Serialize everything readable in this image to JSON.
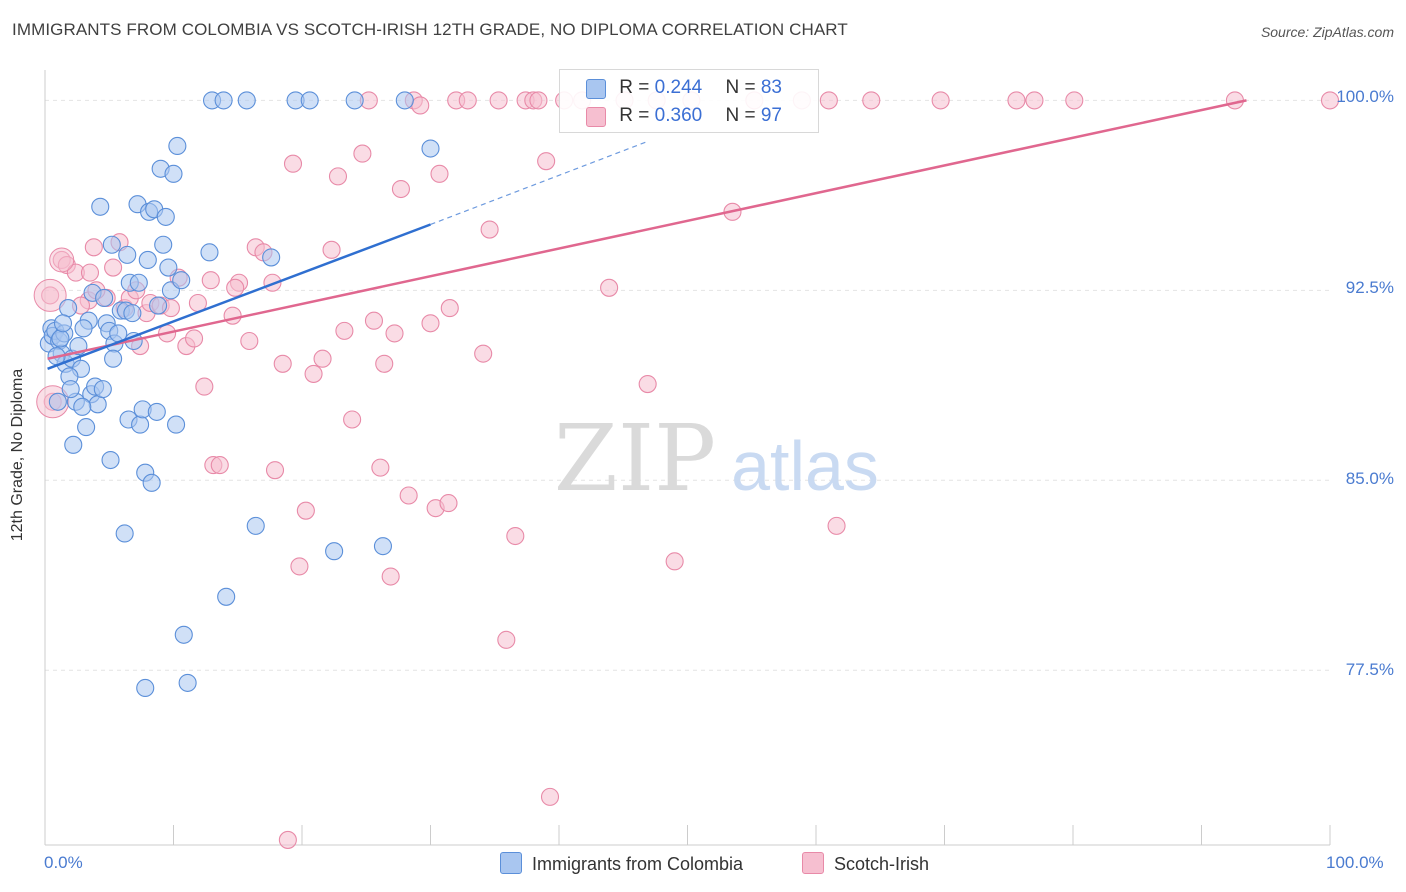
{
  "title": "IMMIGRANTS FROM COLOMBIA VS SCOTCH-IRISH 12TH GRADE, NO DIPLOMA CORRELATION CHART",
  "source": "Source: ZipAtlas.com",
  "watermark": {
    "zip": "ZIP",
    "atlas": "atlas"
  },
  "legend": {
    "rows": [
      {
        "r_label": "R = ",
        "r_value": "0.244",
        "n_label": "N = ",
        "n_value": "83"
      },
      {
        "r_label": "R = ",
        "r_value": "0.360",
        "n_label": "N = ",
        "n_value": "97"
      }
    ],
    "series_names": [
      "Immigrants from Colombia",
      "Scotch-Irish"
    ]
  },
  "colors": {
    "blue_fill": "#a9c6f0",
    "blue_stroke": "#5b8fd9",
    "blue_line": "#2f6fd0",
    "pink_fill": "#f6bfd0",
    "pink_stroke": "#e88aa8",
    "pink_line": "#e0678f",
    "grid": "#e4e4e4",
    "tick_text": "#4a7bd0"
  },
  "chart_data": {
    "type": "scatter",
    "title": "IMMIGRANTS FROM COLOMBIA VS SCOTCH-IRISH 12TH GRADE, NO DIPLOMA CORRELATION CHART",
    "xlabel": "",
    "ylabel": "12th Grade, No Diploma",
    "xlim": [
      0,
      100
    ],
    "ylim": [
      70.6,
      101.2
    ],
    "x_tick_labels": [
      "0.0%",
      "100.0%"
    ],
    "y_ticks": [
      77.5,
      85.0,
      92.5,
      100.0
    ],
    "y_tick_labels": [
      "77.5%",
      "85.0%",
      "92.5%",
      "100.0%"
    ],
    "series": [
      {
        "name": "Immigrants from Colombia",
        "r": 0.244,
        "n": 83,
        "trend": {
          "x": [
            0.2,
            30.0
          ],
          "y": [
            89.4,
            95.1
          ],
          "dash_to": [
            47.0,
            98.4
          ]
        },
        "points": [
          [
            0.3,
            90.4
          ],
          [
            0.5,
            91.0
          ],
          [
            0.6,
            90.7
          ],
          [
            0.8,
            90.9
          ],
          [
            1.0,
            88.1
          ],
          [
            1.1,
            90.5
          ],
          [
            1.3,
            90.0
          ],
          [
            1.5,
            90.8
          ],
          [
            1.6,
            89.6
          ],
          [
            1.8,
            91.8
          ],
          [
            2.1,
            89.8
          ],
          [
            2.2,
            86.4
          ],
          [
            2.4,
            88.1
          ],
          [
            2.6,
            90.3
          ],
          [
            2.8,
            89.4
          ],
          [
            3.2,
            87.1
          ],
          [
            3.4,
            91.3
          ],
          [
            3.6,
            88.4
          ],
          [
            3.7,
            92.4
          ],
          [
            3.9,
            88.7
          ],
          [
            4.1,
            88.0
          ],
          [
            4.3,
            95.8
          ],
          [
            4.6,
            92.2
          ],
          [
            4.8,
            91.2
          ],
          [
            5.0,
            90.9
          ],
          [
            5.1,
            85.8
          ],
          [
            5.2,
            94.3
          ],
          [
            5.4,
            90.4
          ],
          [
            5.7,
            90.8
          ],
          [
            5.9,
            91.7
          ],
          [
            6.3,
            91.7
          ],
          [
            6.4,
            93.9
          ],
          [
            6.5,
            87.4
          ],
          [
            6.6,
            92.8
          ],
          [
            6.8,
            91.6
          ],
          [
            7.2,
            95.9
          ],
          [
            7.3,
            92.8
          ],
          [
            7.4,
            87.2
          ],
          [
            7.6,
            87.8
          ],
          [
            7.8,
            85.3
          ],
          [
            8.0,
            93.7
          ],
          [
            8.1,
            95.6
          ],
          [
            8.3,
            84.9
          ],
          [
            8.5,
            95.7
          ],
          [
            8.7,
            87.7
          ],
          [
            9.0,
            97.3
          ],
          [
            9.2,
            94.3
          ],
          [
            9.4,
            95.4
          ],
          [
            9.6,
            93.4
          ],
          [
            9.8,
            92.5
          ],
          [
            10.0,
            97.1
          ],
          [
            10.2,
            87.2
          ],
          [
            10.3,
            98.2
          ],
          [
            10.6,
            92.9
          ],
          [
            10.8,
            78.9
          ],
          [
            11.1,
            77.0
          ],
          [
            12.8,
            94.0
          ],
          [
            13.0,
            100.0
          ],
          [
            13.9,
            100.0
          ],
          [
            14.1,
            80.4
          ],
          [
            15.7,
            100.0
          ],
          [
            16.4,
            83.2
          ],
          [
            17.6,
            93.8
          ],
          [
            19.5,
            100.0
          ],
          [
            20.6,
            100.0
          ],
          [
            22.5,
            82.2
          ],
          [
            24.1,
            100.0
          ],
          [
            26.3,
            82.4
          ],
          [
            28.0,
            100.0
          ],
          [
            30.0,
            98.1
          ],
          [
            6.2,
            82.9
          ],
          [
            7.8,
            76.8
          ],
          [
            3.0,
            91.0
          ],
          [
            1.9,
            89.1
          ],
          [
            2.9,
            87.9
          ],
          [
            4.5,
            88.6
          ],
          [
            5.3,
            89.8
          ],
          [
            1.2,
            90.6
          ],
          [
            0.9,
            89.9
          ],
          [
            6.9,
            90.5
          ],
          [
            8.8,
            91.9
          ],
          [
            2.0,
            88.6
          ],
          [
            1.4,
            91.2
          ]
        ]
      },
      {
        "name": "Scotch-Irish",
        "r": 0.36,
        "n": 97,
        "trend": {
          "x": [
            0.2,
            93.5
          ],
          "y": [
            89.8,
            100.0
          ]
        },
        "points": [
          [
            0.4,
            92.3
          ],
          [
            0.6,
            88.1
          ],
          [
            1.3,
            93.7
          ],
          [
            1.7,
            93.5
          ],
          [
            2.4,
            93.2
          ],
          [
            3.4,
            92.1
          ],
          [
            3.5,
            93.2
          ],
          [
            3.8,
            94.2
          ],
          [
            4.8,
            92.2
          ],
          [
            5.3,
            93.4
          ],
          [
            5.8,
            94.4
          ],
          [
            6.2,
            91.8
          ],
          [
            6.6,
            92.2
          ],
          [
            7.1,
            92.5
          ],
          [
            7.4,
            90.3
          ],
          [
            7.9,
            91.6
          ],
          [
            8.2,
            92.0
          ],
          [
            9.0,
            91.9
          ],
          [
            9.5,
            90.8
          ],
          [
            9.8,
            91.8
          ],
          [
            10.4,
            93.0
          ],
          [
            11.0,
            90.3
          ],
          [
            11.6,
            90.6
          ],
          [
            12.4,
            88.7
          ],
          [
            12.9,
            92.9
          ],
          [
            13.1,
            85.6
          ],
          [
            13.6,
            85.6
          ],
          [
            14.6,
            91.5
          ],
          [
            15.1,
            92.8
          ],
          [
            15.9,
            90.5
          ],
          [
            16.4,
            94.2
          ],
          [
            17.0,
            94.0
          ],
          [
            17.7,
            92.8
          ],
          [
            17.9,
            85.4
          ],
          [
            18.5,
            89.6
          ],
          [
            18.9,
            70.8
          ],
          [
            19.3,
            97.5
          ],
          [
            19.8,
            81.6
          ],
          [
            20.3,
            83.8
          ],
          [
            20.9,
            89.2
          ],
          [
            21.6,
            89.8
          ],
          [
            22.3,
            94.1
          ],
          [
            22.8,
            97.0
          ],
          [
            23.3,
            90.9
          ],
          [
            23.9,
            87.4
          ],
          [
            24.7,
            97.9
          ],
          [
            25.2,
            100.0
          ],
          [
            25.6,
            91.3
          ],
          [
            26.1,
            85.5
          ],
          [
            26.9,
            81.2
          ],
          [
            27.2,
            90.8
          ],
          [
            27.7,
            96.5
          ],
          [
            28.3,
            84.4
          ],
          [
            28.7,
            100.0
          ],
          [
            29.2,
            99.8
          ],
          [
            30.0,
            91.2
          ],
          [
            30.4,
            83.9
          ],
          [
            30.7,
            97.1
          ],
          [
            31.4,
            84.1
          ],
          [
            32.0,
            100.0
          ],
          [
            32.9,
            100.0
          ],
          [
            34.1,
            90.0
          ],
          [
            34.6,
            94.9
          ],
          [
            35.3,
            100.0
          ],
          [
            35.9,
            78.7
          ],
          [
            36.6,
            82.8
          ],
          [
            37.4,
            100.0
          ],
          [
            38.0,
            100.0
          ],
          [
            38.4,
            100.0
          ],
          [
            39.0,
            97.6
          ],
          [
            39.3,
            72.5
          ],
          [
            40.4,
            100.0
          ],
          [
            41.8,
            100.0
          ],
          [
            43.9,
            92.6
          ],
          [
            45.1,
            100.0
          ],
          [
            46.9,
            88.8
          ],
          [
            47.6,
            100.0
          ],
          [
            49.0,
            81.8
          ],
          [
            50.3,
            100.0
          ],
          [
            53.5,
            95.6
          ],
          [
            55.2,
            100.0
          ],
          [
            58.9,
            100.0
          ],
          [
            61.0,
            100.0
          ],
          [
            61.6,
            83.2
          ],
          [
            64.3,
            100.0
          ],
          [
            69.7,
            100.0
          ],
          [
            75.6,
            100.0
          ],
          [
            77.0,
            100.0
          ],
          [
            80.1,
            100.0
          ],
          [
            92.6,
            100.0
          ],
          [
            100.0,
            100.0
          ],
          [
            4.0,
            92.5
          ],
          [
            2.8,
            91.9
          ],
          [
            11.9,
            92.0
          ],
          [
            14.8,
            92.6
          ],
          [
            26.4,
            89.6
          ],
          [
            31.5,
            91.8
          ]
        ]
      }
    ]
  }
}
